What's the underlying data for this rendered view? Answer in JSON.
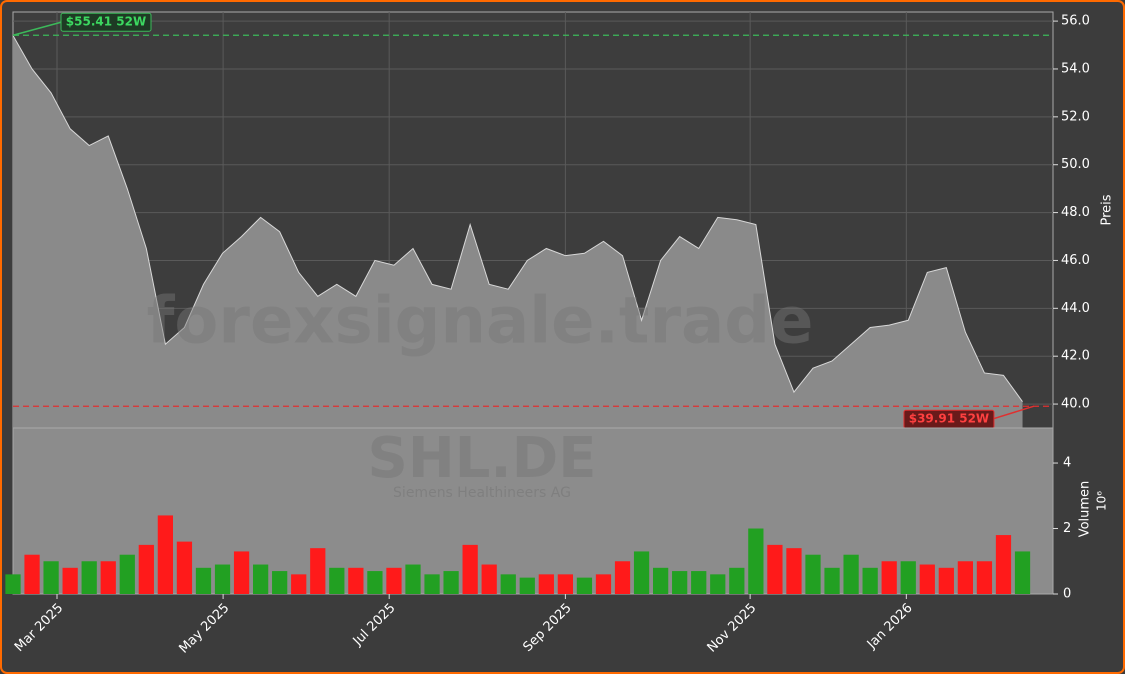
{
  "chart_data": [
    {
      "type": "area",
      "axis_label": "Preis",
      "color": "#8a8a8a",
      "line_color": "#d8d8d8",
      "watermark": "forexsignale.trade",
      "x": [
        0,
        1,
        2,
        3,
        4,
        5,
        6,
        7,
        8,
        9,
        10,
        11,
        12,
        13,
        14,
        15,
        16,
        17,
        18,
        19,
        20,
        21,
        22,
        23,
        24,
        25,
        26,
        27,
        28,
        29,
        30,
        31,
        32,
        33,
        34,
        35,
        36,
        37,
        38,
        39,
        40,
        41,
        42,
        43,
        44,
        45,
        46,
        47,
        48,
        49,
        50,
        51,
        52,
        53
      ],
      "values": [
        55.4,
        54,
        53,
        51.5,
        50.8,
        51.2,
        49,
        46.5,
        42.5,
        43.2,
        45,
        46.3,
        47,
        47.8,
        47.2,
        45.5,
        44.5,
        45,
        44.5,
        46,
        45.8,
        46.5,
        45,
        44.8,
        47.5,
        45,
        44.8,
        46,
        46.5,
        46.2,
        46.3,
        46.8,
        46.2,
        43.5,
        46,
        47,
        46.5,
        47.8,
        47.7,
        47.5,
        42.5,
        40.5,
        41.5,
        41.8,
        42.5,
        43.2,
        43.3,
        43.5,
        45.5,
        45.7,
        43,
        41.3,
        41.2,
        40.1
      ],
      "xlim": [
        0,
        54.6
      ],
      "ylim": [
        39,
        56.38
      ],
      "yticks": [
        40,
        42,
        44,
        46,
        48,
        50,
        52,
        54,
        56
      ],
      "yticks_labels": [
        "40.0",
        "42.0",
        "44.0",
        "46.0",
        "48.0",
        "50.0",
        "52.0",
        "54.0",
        "56.0"
      ],
      "grid": true,
      "hlines": [
        {
          "value": 55.41,
          "label": "$55.41 52W",
          "color": "#3cb95a",
          "x": 0
        },
        {
          "value": 39.91,
          "label": "$39.91 52W",
          "color": "#e03030",
          "x": 53.6
        }
      ]
    },
    {
      "type": "bar",
      "axis_label": "Volumen",
      "axis_exponent": "10⁶",
      "watermark": "SHL.DE",
      "subtitle": "Siemens Healthineers AG",
      "x": [
        0,
        1,
        2,
        3,
        4,
        5,
        6,
        7,
        8,
        9,
        10,
        11,
        12,
        13,
        14,
        15,
        16,
        17,
        18,
        19,
        20,
        21,
        22,
        23,
        24,
        25,
        26,
        27,
        28,
        29,
        30,
        31,
        32,
        33,
        34,
        35,
        36,
        37,
        38,
        39,
        40,
        41,
        42,
        43,
        44,
        45,
        46,
        47,
        48,
        49,
        50,
        51,
        52,
        53
      ],
      "values": [
        0.6,
        1.2,
        1.0,
        0.8,
        1.0,
        1.0,
        1.2,
        1.5,
        2.4,
        1.6,
        0.8,
        0.9,
        1.3,
        0.9,
        0.7,
        0.6,
        1.4,
        0.8,
        0.8,
        0.7,
        0.8,
        0.9,
        0.6,
        0.7,
        1.5,
        0.9,
        0.6,
        0.5,
        0.6,
        0.6,
        0.5,
        0.6,
        1.0,
        1.3,
        0.8,
        0.7,
        0.7,
        0.6,
        0.8,
        2.0,
        1.5,
        1.4,
        1.2,
        0.8,
        1.2,
        0.8,
        1.0,
        1.0,
        0.9,
        0.8,
        1.0,
        1.0,
        1.8,
        1.3
      ],
      "colors": [
        "#22a022",
        "#ff1a1a",
        "#22a022",
        "#ff1a1a",
        "#22a022",
        "#ff1a1a",
        "#22a022",
        "#ff1a1a",
        "#ff1a1a",
        "#ff1a1a",
        "#22a022",
        "#22a022",
        "#ff1a1a",
        "#22a022",
        "#22a022",
        "#ff1a1a",
        "#ff1a1a",
        "#22a022",
        "#ff1a1a",
        "#22a022",
        "#ff1a1a",
        "#22a022",
        "#22a022",
        "#22a022",
        "#ff1a1a",
        "#ff1a1a",
        "#22a022",
        "#22a022",
        "#ff1a1a",
        "#ff1a1a",
        "#22a022",
        "#ff1a1a",
        "#ff1a1a",
        "#22a022",
        "#22a022",
        "#22a022",
        "#22a022",
        "#22a022",
        "#22a022",
        "#22a022",
        "#ff1a1a",
        "#ff1a1a",
        "#22a022",
        "#22a022",
        "#22a022",
        "#22a022",
        "#ff1a1a",
        "#22a022",
        "#ff1a1a",
        "#ff1a1a",
        "#ff1a1a",
        "#ff1a1a",
        "#ff1a1a",
        "#22a022"
      ],
      "xlim": [
        0,
        54.6
      ],
      "ylim": [
        0,
        5.07
      ],
      "yticks": [
        0,
        2,
        4
      ],
      "xticks": [
        {
          "value": 2.31,
          "label": "Mar 2025"
        },
        {
          "value": 11.03,
          "label": "May 2025"
        },
        {
          "value": 19.75,
          "label": "Jul 2025"
        },
        {
          "value": 29.0,
          "label": "Sep 2025"
        },
        {
          "value": 38.7,
          "label": "Nov 2025"
        },
        {
          "value": 46.9,
          "label": "Jan 2026"
        }
      ]
    }
  ]
}
